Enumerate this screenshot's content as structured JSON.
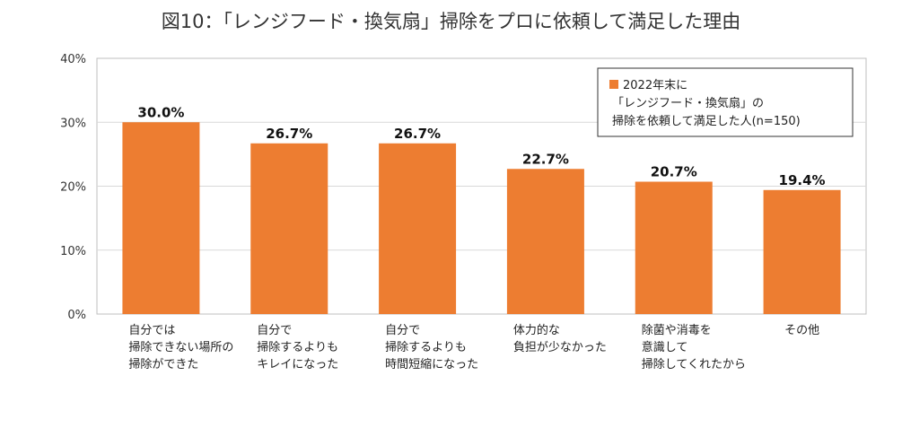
{
  "chart_data": {
    "type": "bar",
    "title": "図10：「レンジフード・換気扇」掃除をプロに依頼して満足した理由",
    "categories": [
      [
        "自分では",
        "掃除できない場所の",
        "掃除ができた"
      ],
      [
        "自分で",
        "掃除するよりも",
        "キレイになった"
      ],
      [
        "自分で",
        "掃除するよりも",
        "時間短縮になった"
      ],
      [
        "体力的な",
        "負担が少なかった"
      ],
      [
        "除菌や消毒を",
        "意識して",
        "掃除してくれたから"
      ],
      [
        "その他"
      ]
    ],
    "values": [
      30.0,
      26.7,
      26.7,
      22.7,
      20.7,
      19.4
    ],
    "value_labels": [
      "30.0%",
      "26.7%",
      "26.7%",
      "22.7%",
      "20.7%",
      "19.4%"
    ],
    "ylim": [
      0,
      40
    ],
    "yticks": [
      0,
      10,
      20,
      30,
      40
    ],
    "ytick_labels": [
      "0%",
      "10%",
      "20%",
      "30%",
      "40%"
    ],
    "grid": true,
    "legend": {
      "placement": "top-right",
      "lines": [
        "2022年末に",
        "「レンジフード・換気扇」の",
        "掃除を依頼して満足した人(n=150)"
      ]
    },
    "colors": {
      "bar": "#ED7D31",
      "grid": "#D9D9D9",
      "axis": "#BFBFBF"
    }
  }
}
